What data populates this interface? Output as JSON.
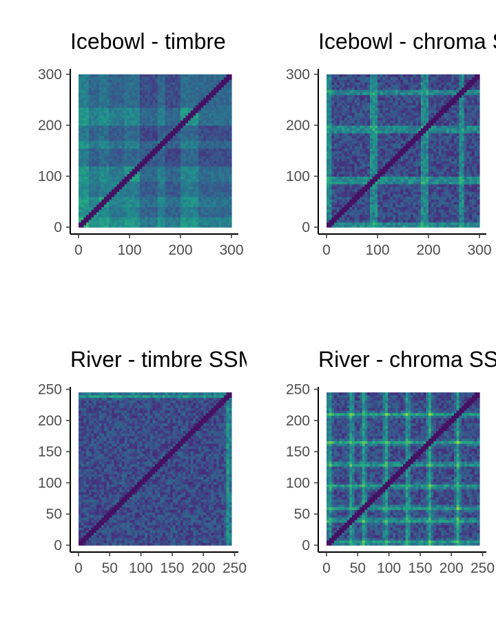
{
  "chart_data": [
    {
      "type": "heatmap",
      "title": "Icebowl - timbre",
      "xlabel": "",
      "ylabel": "",
      "xlim": [
        0,
        300
      ],
      "ylim": [
        0,
        300
      ],
      "x_ticks": [
        "0",
        "100",
        "200",
        "300"
      ],
      "y_ticks": [
        "0",
        "100",
        "200",
        "300"
      ],
      "grid": false,
      "colormap": "viridis",
      "n_cells": 300,
      "blocks": [
        {
          "start": 0,
          "end": 20,
          "level": 0.55
        },
        {
          "start": 20,
          "end": 40,
          "level": 0.35
        },
        {
          "start": 40,
          "end": 60,
          "level": 0.45
        },
        {
          "start": 60,
          "end": 90,
          "level": 0.3
        },
        {
          "start": 90,
          "end": 120,
          "level": 0.4
        },
        {
          "start": 120,
          "end": 155,
          "level": 0.15
        },
        {
          "start": 155,
          "end": 170,
          "level": 0.35
        },
        {
          "start": 170,
          "end": 200,
          "level": 0.15
        },
        {
          "start": 200,
          "end": 235,
          "level": 0.4
        },
        {
          "start": 235,
          "end": 300,
          "level": 0.2
        }
      ]
    },
    {
      "type": "heatmap",
      "title": "Icebowl - chroma SSM",
      "xlabel": "",
      "ylabel": "",
      "xlim": [
        0,
        300
      ],
      "ylim": [
        0,
        300
      ],
      "x_ticks": [
        "0",
        "100",
        "200",
        "300"
      ],
      "y_ticks": [
        "0",
        "100",
        "200",
        "300"
      ],
      "grid": false,
      "colormap": "viridis",
      "n_cells": 300,
      "bright_lines": [
        5,
        90,
        95,
        190,
        195,
        265
      ]
    },
    {
      "type": "heatmap",
      "title": "River - timbre SSM",
      "xlabel": "",
      "ylabel": "",
      "xlim": [
        0,
        245
      ],
      "ylim": [
        0,
        245
      ],
      "x_ticks": [
        "0",
        "50",
        "100",
        "150",
        "200",
        "250"
      ],
      "y_ticks": [
        "0",
        "50",
        "100",
        "150",
        "200",
        "250"
      ],
      "grid": false,
      "colormap": "viridis",
      "n_cells": 245,
      "bright_lines": [
        240
      ]
    },
    {
      "type": "heatmap",
      "title": "River - chroma SSM",
      "xlabel": "",
      "ylabel": "",
      "xlim": [
        0,
        245
      ],
      "ylim": [
        0,
        245
      ],
      "x_ticks": [
        "0",
        "50",
        "100",
        "150",
        "200",
        "250"
      ],
      "y_ticks": [
        "0",
        "50",
        "100",
        "150",
        "200",
        "250"
      ],
      "grid": false,
      "colormap": "viridis",
      "n_cells": 245,
      "bright_lines": [
        5,
        40,
        60,
        95,
        130,
        165,
        210
      ]
    }
  ]
}
